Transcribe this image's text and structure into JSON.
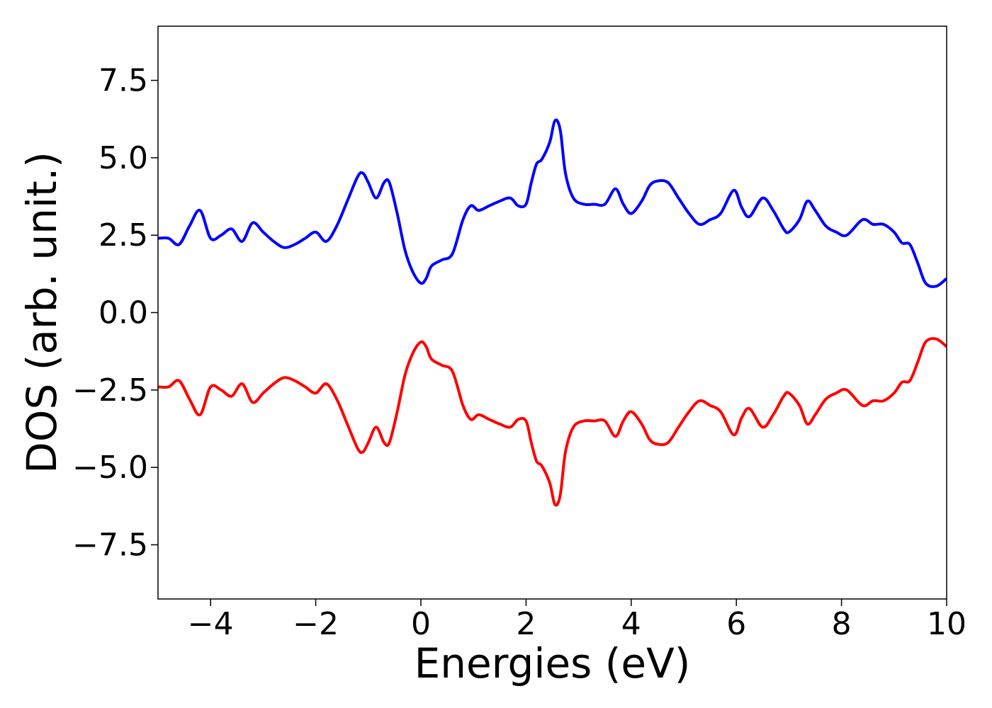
{
  "chart_data": {
    "type": "line",
    "xlabel": "Energies (eV)",
    "ylabel": "DOS (arb. unit.)",
    "xlim": [
      -5,
      10
    ],
    "ylim": [
      -9.25,
      9.25
    ],
    "xticks": [
      -4,
      -2,
      0,
      2,
      4,
      6,
      8,
      10
    ],
    "xtick_labels": [
      "−4",
      "−2",
      "0",
      "2",
      "4",
      "6",
      "8",
      "10"
    ],
    "yticks": [
      7.5,
      5.0,
      2.5,
      0.0,
      -2.5,
      -5.0,
      -7.5
    ],
    "ytick_labels": [
      "7.5",
      "5.0",
      "2.5",
      "0.0",
      "−2.5",
      "−5.0",
      "−7.5"
    ],
    "grid": false,
    "series": [
      {
        "color": "#0000ff",
        "x": [
          -5.0,
          -4.8,
          -4.6,
          -4.4,
          -4.2,
          -4.0,
          -3.8,
          -3.6,
          -3.4,
          -3.2,
          -3.0,
          -2.8,
          -2.6,
          -2.4,
          -2.2,
          -2.0,
          -1.8,
          -1.6,
          -1.4,
          -1.2,
          -1.1,
          -1.0,
          -0.85,
          -0.7,
          -0.6,
          -0.45,
          -0.3,
          -0.15,
          0.0,
          0.1,
          0.2,
          0.4,
          0.6,
          0.8,
          0.95,
          1.1,
          1.3,
          1.5,
          1.7,
          1.85,
          2.0,
          2.1,
          2.2,
          2.3,
          2.45,
          2.55,
          2.65,
          2.75,
          2.9,
          3.1,
          3.3,
          3.5,
          3.7,
          3.85,
          4.0,
          4.2,
          4.35,
          4.5,
          4.7,
          4.9,
          5.1,
          5.3,
          5.5,
          5.7,
          5.95,
          6.1,
          6.25,
          6.5,
          6.7,
          6.9,
          7.0,
          7.2,
          7.35,
          7.5,
          7.7,
          7.9,
          8.1,
          8.4,
          8.6,
          8.8,
          9.0,
          9.15,
          9.3,
          9.45,
          9.6,
          9.8,
          10.0
        ],
        "y": [
          2.4,
          2.4,
          2.2,
          2.8,
          3.3,
          2.4,
          2.5,
          2.7,
          2.3,
          2.9,
          2.6,
          2.3,
          2.1,
          2.2,
          2.4,
          2.6,
          2.3,
          2.8,
          3.6,
          4.4,
          4.5,
          4.2,
          3.7,
          4.2,
          4.2,
          3.2,
          2.0,
          1.3,
          0.95,
          1.1,
          1.5,
          1.7,
          1.9,
          3.0,
          3.45,
          3.3,
          3.45,
          3.6,
          3.7,
          3.45,
          3.5,
          4.2,
          4.8,
          4.95,
          5.5,
          6.2,
          5.9,
          4.5,
          3.7,
          3.5,
          3.5,
          3.5,
          4.0,
          3.5,
          3.2,
          3.6,
          4.1,
          4.25,
          4.2,
          3.7,
          3.2,
          2.85,
          3.0,
          3.2,
          3.95,
          3.4,
          3.1,
          3.7,
          3.3,
          2.7,
          2.6,
          3.0,
          3.6,
          3.3,
          2.8,
          2.6,
          2.5,
          3.0,
          2.85,
          2.85,
          2.6,
          2.25,
          2.2,
          1.6,
          0.95,
          0.85,
          1.1
        ]
      },
      {
        "color": "#ff0000",
        "x": [
          -5.0,
          -4.8,
          -4.6,
          -4.4,
          -4.2,
          -4.0,
          -3.8,
          -3.6,
          -3.4,
          -3.2,
          -3.0,
          -2.8,
          -2.6,
          -2.4,
          -2.2,
          -2.0,
          -1.8,
          -1.6,
          -1.4,
          -1.2,
          -1.1,
          -1.0,
          -0.85,
          -0.7,
          -0.6,
          -0.45,
          -0.3,
          -0.15,
          0.0,
          0.1,
          0.2,
          0.4,
          0.6,
          0.8,
          0.95,
          1.1,
          1.3,
          1.5,
          1.7,
          1.85,
          2.0,
          2.1,
          2.2,
          2.3,
          2.45,
          2.55,
          2.65,
          2.75,
          2.9,
          3.1,
          3.3,
          3.5,
          3.7,
          3.85,
          4.0,
          4.2,
          4.35,
          4.5,
          4.7,
          4.9,
          5.1,
          5.3,
          5.5,
          5.7,
          5.95,
          6.1,
          6.25,
          6.5,
          6.7,
          6.9,
          7.0,
          7.2,
          7.35,
          7.5,
          7.7,
          7.9,
          8.1,
          8.4,
          8.6,
          8.8,
          9.0,
          9.15,
          9.3,
          9.45,
          9.6,
          9.8,
          10.0
        ],
        "y": [
          -2.4,
          -2.4,
          -2.2,
          -2.8,
          -3.3,
          -2.4,
          -2.5,
          -2.7,
          -2.3,
          -2.9,
          -2.6,
          -2.3,
          -2.1,
          -2.2,
          -2.4,
          -2.6,
          -2.3,
          -2.8,
          -3.6,
          -4.4,
          -4.5,
          -4.2,
          -3.7,
          -4.2,
          -4.2,
          -3.2,
          -2.0,
          -1.3,
          -0.95,
          -1.1,
          -1.5,
          -1.7,
          -1.9,
          -3.0,
          -3.45,
          -3.3,
          -3.45,
          -3.6,
          -3.7,
          -3.45,
          -3.5,
          -4.2,
          -4.8,
          -4.95,
          -5.5,
          -6.2,
          -5.9,
          -4.5,
          -3.7,
          -3.5,
          -3.5,
          -3.5,
          -4.0,
          -3.5,
          -3.2,
          -3.6,
          -4.1,
          -4.25,
          -4.2,
          -3.7,
          -3.2,
          -2.85,
          -3.0,
          -3.2,
          -3.95,
          -3.4,
          -3.1,
          -3.7,
          -3.3,
          -2.7,
          -2.6,
          -3.0,
          -3.6,
          -3.3,
          -2.8,
          -2.6,
          -2.5,
          -3.0,
          -2.85,
          -2.85,
          -2.6,
          -2.25,
          -2.2,
          -1.6,
          -0.95,
          -0.85,
          -1.1
        ]
      }
    ]
  }
}
